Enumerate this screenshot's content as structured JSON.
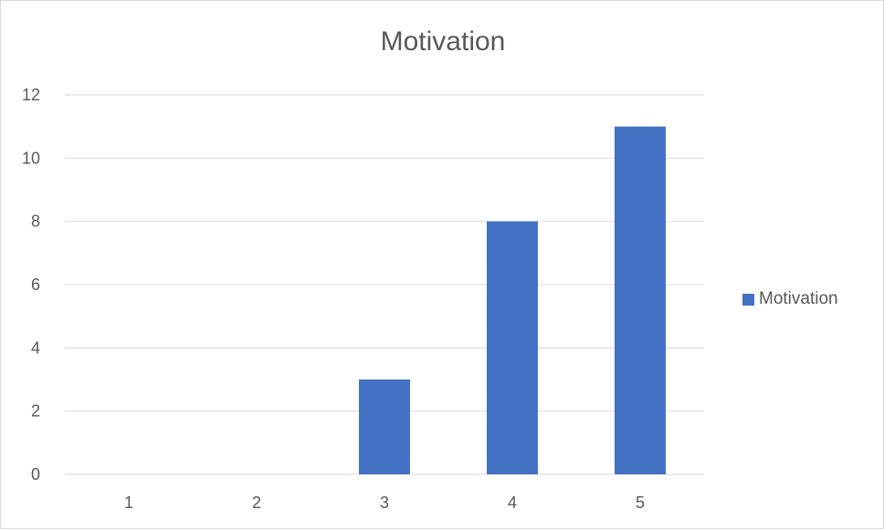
{
  "colors": {
    "series": "#4472C4",
    "grid": "#d9d9d9",
    "text": "#595959"
  },
  "chart_data": {
    "type": "bar",
    "title": "Motivation",
    "categories": [
      "1",
      "2",
      "3",
      "4",
      "5"
    ],
    "series": [
      {
        "name": "Motivation",
        "values": [
          0,
          0,
          3,
          8,
          11
        ]
      }
    ],
    "ylim": [
      0,
      12
    ],
    "yticks": [
      0,
      2,
      4,
      6,
      8,
      10,
      12
    ],
    "grid": true,
    "legend": "right"
  }
}
